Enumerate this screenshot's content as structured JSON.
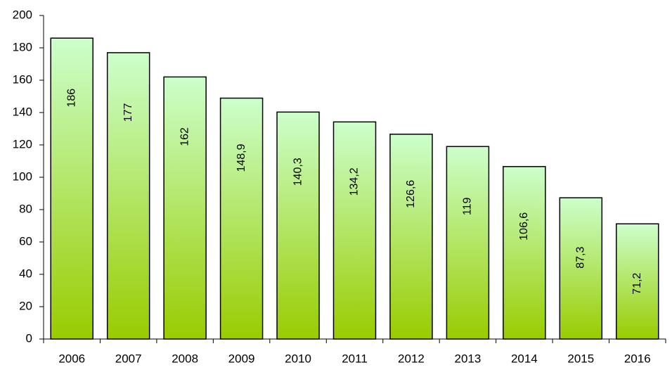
{
  "chart_data": {
    "type": "bar",
    "categories": [
      "2006",
      "2007",
      "2008",
      "2009",
      "2010",
      "2011",
      "2012",
      "2013",
      "2014",
      "2015",
      "2016"
    ],
    "values": [
      186,
      177,
      162,
      148.9,
      140.3,
      134.2,
      126.6,
      119,
      106.6,
      87.3,
      71.2
    ],
    "value_labels": [
      "186",
      "177",
      "162",
      "148,9",
      "140,3",
      "134,2",
      "126,6",
      "119",
      "106,6",
      "87,3",
      "71,2"
    ],
    "color": [
      "#ccffcc",
      "#99cc00"
    ],
    "ylim": [
      0,
      200
    ],
    "yticks": [
      0,
      20,
      40,
      60,
      80,
      100,
      120,
      140,
      160,
      180,
      200
    ],
    "grid": false
  }
}
